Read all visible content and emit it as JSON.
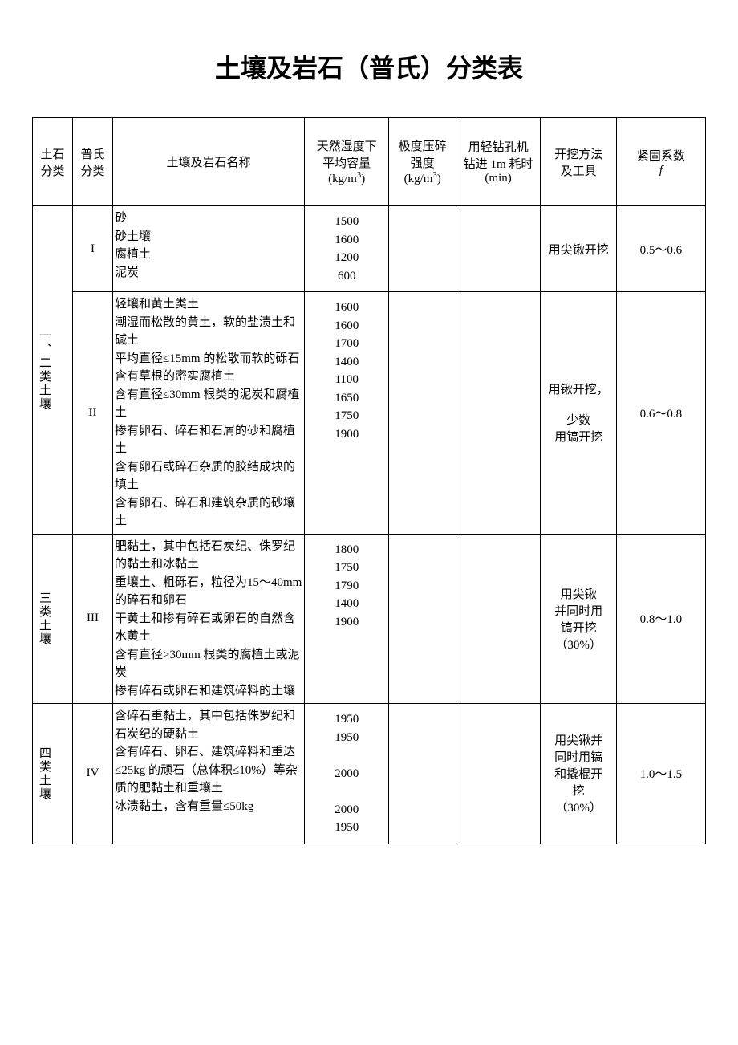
{
  "title": "土壤及岩石（普氏）分类表",
  "headers": {
    "col1": "土石分类",
    "col2": "普氏分类",
    "col3": "土壤及岩石名称",
    "col4_line1": "天然湿度下",
    "col4_line2": "平均容量",
    "col4_unit": "(kg/m³)",
    "col5_line1": "极度压碎",
    "col5_line2": "强度",
    "col5_unit": "(kg/m³)",
    "col6_line1": "用轻钻孔机",
    "col6_line2": "钻进 1m 耗时",
    "col6_unit": "(min)",
    "col7_line1": "开挖方法",
    "col7_line2": "及工具",
    "col8_line1": "紧固系数",
    "col8_symbol": "f"
  },
  "rows": [
    {
      "cat_label": "一、二类土壤",
      "cat_rowspan": 2,
      "pu": "I",
      "desc": "砂\n砂土壤\n腐植土\n泥炭",
      "densities": [
        "1500",
        "1600",
        "1200",
        "600"
      ],
      "method": "用尖锹开挖",
      "coeff": "0.5～0.6"
    },
    {
      "pu": "II",
      "desc": "轻壤和黄土类土\n潮湿而松散的黄土，软的盐渍土和碱土\n平均直径≤15mm 的松散而软的砾石\n含有草根的密实腐植土\n含有直径≤30mm 根类的泥炭和腐植土\n掺有卵石、碎石和石屑的砂和腐植土\n含有卵石或碎石杂质的胶结成块的填土\n含有卵石、碎石和建筑杂质的砂壤土",
      "densities": [
        "1600",
        "1600",
        "1700",
        "1400",
        "1100",
        "1650",
        "1750",
        "1900"
      ],
      "method": "用锹开挖，\n\n少数\n用镐开挖",
      "coeff": "0.6～0.8"
    },
    {
      "cat_label": "三类土壤",
      "cat_rowspan": 1,
      "pu": "III",
      "desc": "肥黏土，其中包括石炭纪、侏罗纪的黏土和冰黏土\n重壤土、粗砾石，粒径为15～40mm 的碎石和卵石\n干黄土和掺有碎石或卵石的自然含水黄土\n含有直径>30mm 根类的腐植土或泥炭\n掺有碎石或卵石和建筑碎料的土壤",
      "densities": [
        "1800",
        "1750",
        "1790",
        "1400",
        "1900"
      ],
      "method": "用尖锹\n并同时用\n镐开挖\n（30%）",
      "coeff": "0.8～1.0"
    },
    {
      "cat_label": "四类土壤",
      "cat_rowspan": 1,
      "pu": "IV",
      "desc": "含碎石重黏土，其中包括侏罗纪和石炭纪的硬黏土\n含有碎石、卵石、建筑碎料和重达≤25kg 的顽石（总体积≤10%）等杂质的肥黏土和重壤土\n冰渍黏土，含有重量≤50kg",
      "densities": [
        "1950",
        "1950",
        "",
        "2000",
        "",
        "2000",
        "1950"
      ],
      "method": "用尖锹并\n同时用镐\n和撬棍开\n挖\n（30%）",
      "coeff": "1.0～1.5"
    }
  ]
}
